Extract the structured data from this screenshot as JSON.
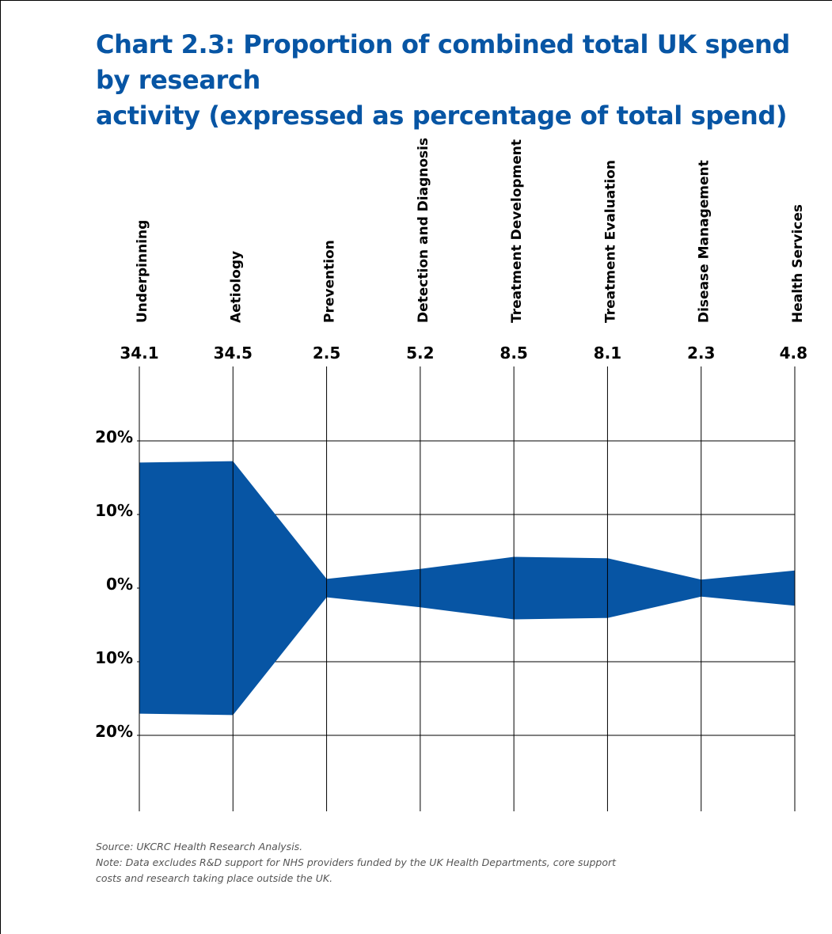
{
  "chart_data": {
    "type": "area",
    "title": "Chart 2.3: Proportion of combined total UK spend by research activity (expressed as percentage of total spend)",
    "title_lines": [
      "Chart 2.3: Proportion of combined total UK spend by research",
      "activity (expressed as percentage of total spend)"
    ],
    "categories": [
      "Underpinning",
      "Aetiology",
      "Prevention",
      "Detection and Diagnosis",
      "Treatment Development",
      "Treatment Evaluation",
      "Disease Management",
      "Health Services"
    ],
    "value_labels": [
      "34.1",
      "34.5",
      "2.5",
      "5.2",
      "8.5",
      "8.1",
      "2.3",
      "4.8"
    ],
    "values": [
      34.1,
      34.5,
      2.5,
      5.2,
      8.5,
      8.1,
      2.3,
      4.8
    ],
    "layout": "symmetric band centred on 0%, half of each value drawn above and half below",
    "y_tick_labels": [
      "20%",
      "10%",
      "0%",
      "10%",
      "20%"
    ],
    "y_tick_values": [
      20,
      10,
      0,
      -10,
      -20
    ],
    "ylim": [
      -30,
      30
    ],
    "grid": true,
    "color": "#0755a4"
  },
  "footnote": {
    "source": "Source: UKCRC Health Research Analysis.",
    "note_lines": [
      "Note: Data excludes R&D support for NHS providers funded by the UK Health Departments, core support",
      "costs and research taking place outside the UK."
    ]
  }
}
